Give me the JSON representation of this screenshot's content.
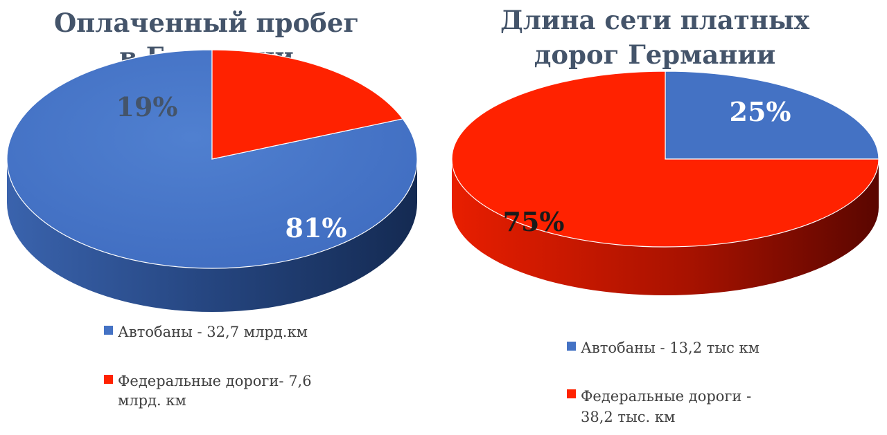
{
  "chart_data": [
    {
      "type": "pie",
      "title_lines": [
        "Оплаченный пробег",
        "в Германии"
      ],
      "slices": [
        {
          "label_lines": [
            "Автобаны - 32,7 млрд.км"
          ],
          "value": 81,
          "display": "81%",
          "color": "#4472c4"
        },
        {
          "label_lines": [
            "Федеральные дороги- 7,6",
            "млрд. км"
          ],
          "value": 19,
          "display": "19%",
          "color": "#ff2200"
        }
      ],
      "legend_position": "bottom"
    },
    {
      "type": "pie",
      "title_lines": [
        "Длина сети платных",
        "дорог Германии"
      ],
      "slices": [
        {
          "label_lines": [
            "Автобаны - 13,2 тыс км"
          ],
          "value": 25,
          "display": "25%",
          "color": "#4472c4"
        },
        {
          "label_lines": [
            "Федеральные дороги -",
            "38,2 тыс. км"
          ],
          "value": 75,
          "display": "75%",
          "color": "#ff2200"
        }
      ],
      "legend_position": "bottom"
    }
  ]
}
